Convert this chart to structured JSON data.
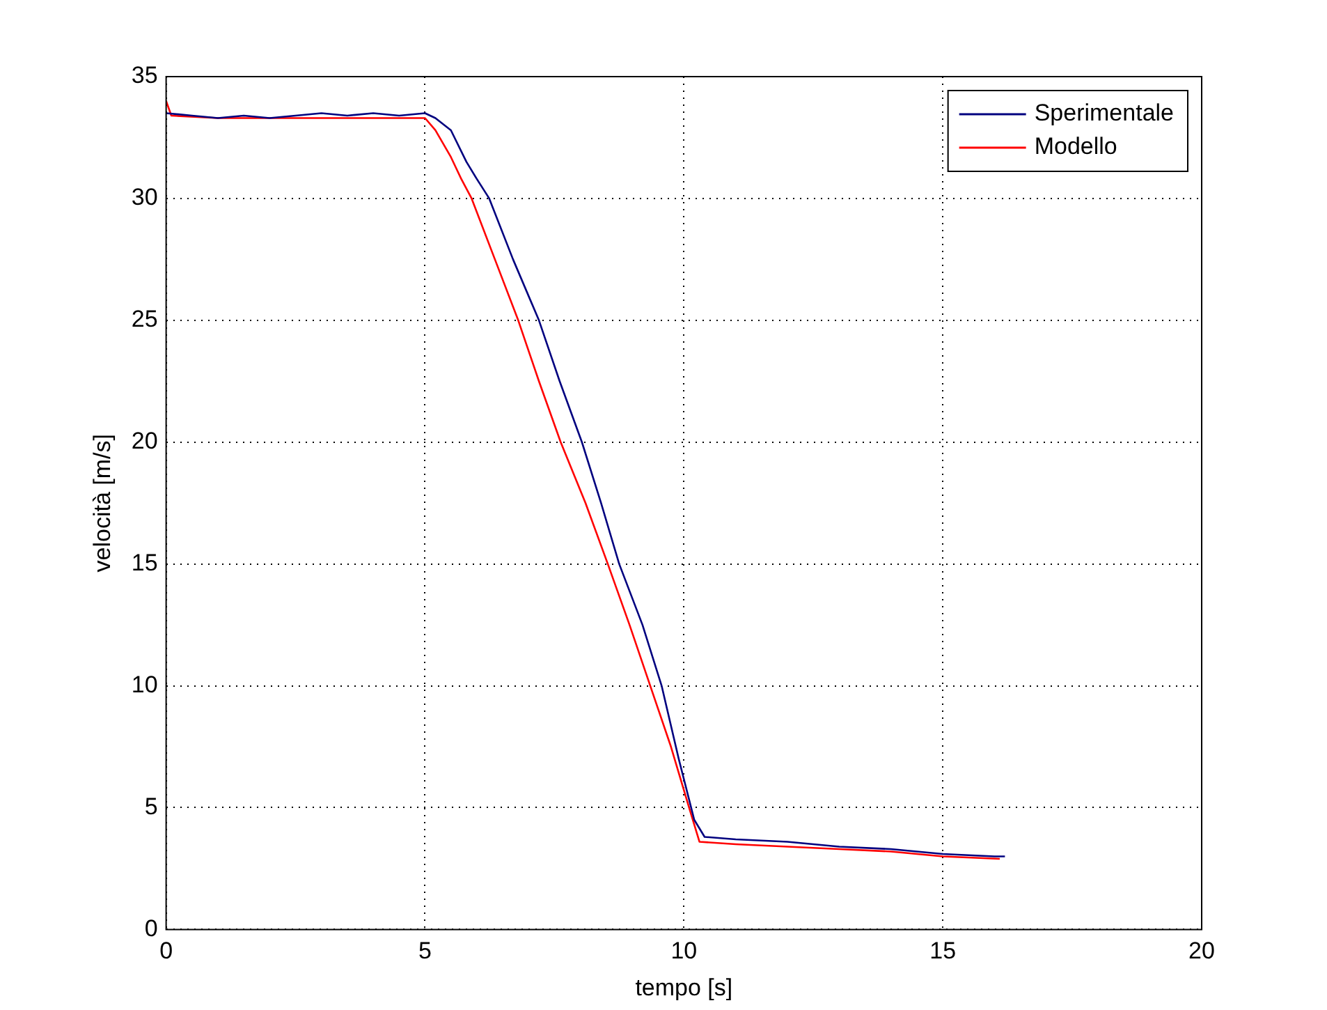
{
  "chart_data": {
    "type": "line",
    "xlabel": "tempo [s]",
    "ylabel": "velocità [m/s]",
    "xlim": [
      0,
      20
    ],
    "xticks": [
      0,
      5,
      10,
      15,
      20
    ],
    "ylim": [
      0,
      35
    ],
    "yticks": [
      0,
      5,
      10,
      15,
      20,
      25,
      30,
      35
    ],
    "grid": true,
    "legend": "top right",
    "marker": "none",
    "line_style": "solid",
    "series": [
      {
        "name": "Sperimentale",
        "color": "#00007f",
        "x": [
          0,
          0.5,
          1,
          1.5,
          2,
          2.5,
          3,
          3.5,
          4,
          4.5,
          5,
          5.2,
          5.5,
          5.8,
          6,
          6.24,
          6.7,
          7.2,
          7.6,
          8.03,
          8.4,
          8.75,
          9.2,
          9.57,
          9.9,
          10.2,
          10.4,
          11,
          12,
          13,
          14,
          15,
          16,
          16.2
        ],
        "values": [
          33.5,
          33.4,
          33.3,
          33.4,
          33.3,
          33.4,
          33.5,
          33.4,
          33.5,
          33.4,
          33.5,
          33.3,
          32.8,
          31.5,
          30.8,
          30,
          27.5,
          25,
          22.5,
          20,
          17.5,
          15,
          12.5,
          10,
          7,
          4.5,
          3.8,
          3.7,
          3.6,
          3.4,
          3.3,
          3.1,
          3.0,
          3.0
        ]
      },
      {
        "name": "Modello",
        "color": "#ff0000",
        "x": [
          0,
          0.1,
          1,
          2,
          3,
          4,
          5,
          5.2,
          5.5,
          5.7,
          5.9,
          6.35,
          6.8,
          7.2,
          7.62,
          8.1,
          8.53,
          8.95,
          9.35,
          9.75,
          10.1,
          10.3,
          11,
          12,
          13,
          14,
          15,
          16.1
        ],
        "values": [
          34,
          33.4,
          33.3,
          33.3,
          33.3,
          33.3,
          33.3,
          32.8,
          31.7,
          30.8,
          30,
          27.5,
          25,
          22.5,
          20,
          17.5,
          15,
          12.5,
          10,
          7.5,
          5,
          3.6,
          3.5,
          3.4,
          3.3,
          3.2,
          3.0,
          2.9
        ]
      }
    ]
  }
}
